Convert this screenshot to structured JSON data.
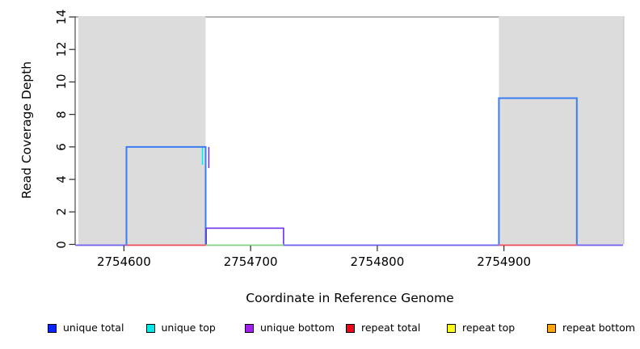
{
  "chart_data": {
    "type": "line",
    "subtype": "step-coverage-plot",
    "title": "",
    "xlabel": "Coordinate in Reference Genome",
    "ylabel": "Read Coverage Depth",
    "xlim": [
      2754561.5,
      2754994
    ],
    "ylim": [
      0,
      14
    ],
    "xticks": [
      2754600,
      2754700,
      2754800,
      2754900
    ],
    "xtick_labels": [
      "2754600",
      "2754700",
      "2754800",
      "2754900"
    ],
    "yticks": [
      0,
      2,
      4,
      6,
      8,
      10,
      12,
      14
    ],
    "ytick_labels": [
      "0",
      "2",
      "4",
      "6",
      "8",
      "10",
      "12",
      "14"
    ],
    "grid": false,
    "plot_bg": "#ffffff",
    "repeat_region_fill": "#dcdcdc",
    "repeat_regions": [
      {
        "x1": 2754564,
        "x2": 2754664.5
      },
      {
        "x1": 2754896,
        "x2": 2754994
      }
    ],
    "frame": {
      "top_line": {
        "y": 14,
        "x1": 2754561.5,
        "x2": 2754896,
        "color": "#97979b"
      },
      "left_line_color": "#4a4a4a",
      "right_line_color": "#c6c6c6",
      "tick_color": "#2a2a2a"
    },
    "baseline_segments": [
      {
        "x1": 2754561.5,
        "x2": 2754602,
        "y": 0,
        "color": "#6e5cf2"
      },
      {
        "x1": 2754602,
        "x2": 2754664.5,
        "y": 0,
        "color": "#ee4758"
      },
      {
        "x1": 2754664.5,
        "x2": 2754726,
        "y": 0,
        "color": "#7fd07f"
      },
      {
        "x1": 2754726,
        "x2": 2754896,
        "y": 0,
        "color": "#655df0"
      },
      {
        "x1": 2754896,
        "x2": 2754957.5,
        "y": 0,
        "color": "#ee4758"
      },
      {
        "x1": 2754957.5,
        "x2": 2754994,
        "y": 0,
        "color": "#6e5cf2"
      }
    ],
    "step_lines": [
      {
        "name": "unique-top-edge",
        "color": "#22dde0",
        "width": 1.4,
        "pts": [
          [
            2754662,
            6
          ],
          [
            2754662,
            4.9
          ]
        ]
      },
      {
        "name": "unique-bottom-edge",
        "color": "#5b2fe0",
        "width": 1.4,
        "pts": [
          [
            2754667,
            6
          ],
          [
            2754667,
            4.7
          ]
        ]
      },
      {
        "name": "unique-total-left",
        "color": "#3c7cf3",
        "width": 2,
        "pts": [
          [
            2754602,
            0
          ],
          [
            2754602,
            6
          ],
          [
            2754664.5,
            6
          ],
          [
            2754664.5,
            0
          ]
        ]
      },
      {
        "name": "unique-bottom-step",
        "color": "#6a35e8",
        "width": 1.6,
        "pts": [
          [
            2754665,
            0
          ],
          [
            2754665,
            1
          ],
          [
            2754726,
            1
          ],
          [
            2754726,
            0
          ]
        ]
      },
      {
        "name": "unique-total-right",
        "color": "#3c7cf3",
        "width": 2,
        "pts": [
          [
            2754896,
            0
          ],
          [
            2754896,
            9
          ],
          [
            2754957.5,
            9
          ],
          [
            2754957.5,
            0
          ]
        ]
      }
    ],
    "series_summary": [
      {
        "name": "unique total",
        "values": "0 until 2754602; 6 from 2754602-2754664; 0 from 2754664-2754896; 9 from 2754896-2754957; 0 after"
      },
      {
        "name": "unique top",
        "values": "0 (hidden under unique total)"
      },
      {
        "name": "unique bottom",
        "values": "1 from 2754665-2754726; 0 elsewhere"
      },
      {
        "name": "repeat total",
        "values": "0 across plot"
      },
      {
        "name": "repeat top",
        "values": "0 across plot"
      },
      {
        "name": "repeat bottom",
        "values": "0 across plot"
      }
    ],
    "legend": [
      {
        "label": "unique total",
        "color": "#0b24fb"
      },
      {
        "label": "unique top",
        "color": "#06e8e4"
      },
      {
        "label": "unique bottom",
        "color": "#a11fea"
      },
      {
        "label": "repeat total",
        "color": "#f00713"
      },
      {
        "label": "repeat top",
        "color": "#fcfe18"
      },
      {
        "label": "repeat bottom",
        "color": "#fba60c"
      }
    ],
    "legend_position": "bottom"
  }
}
